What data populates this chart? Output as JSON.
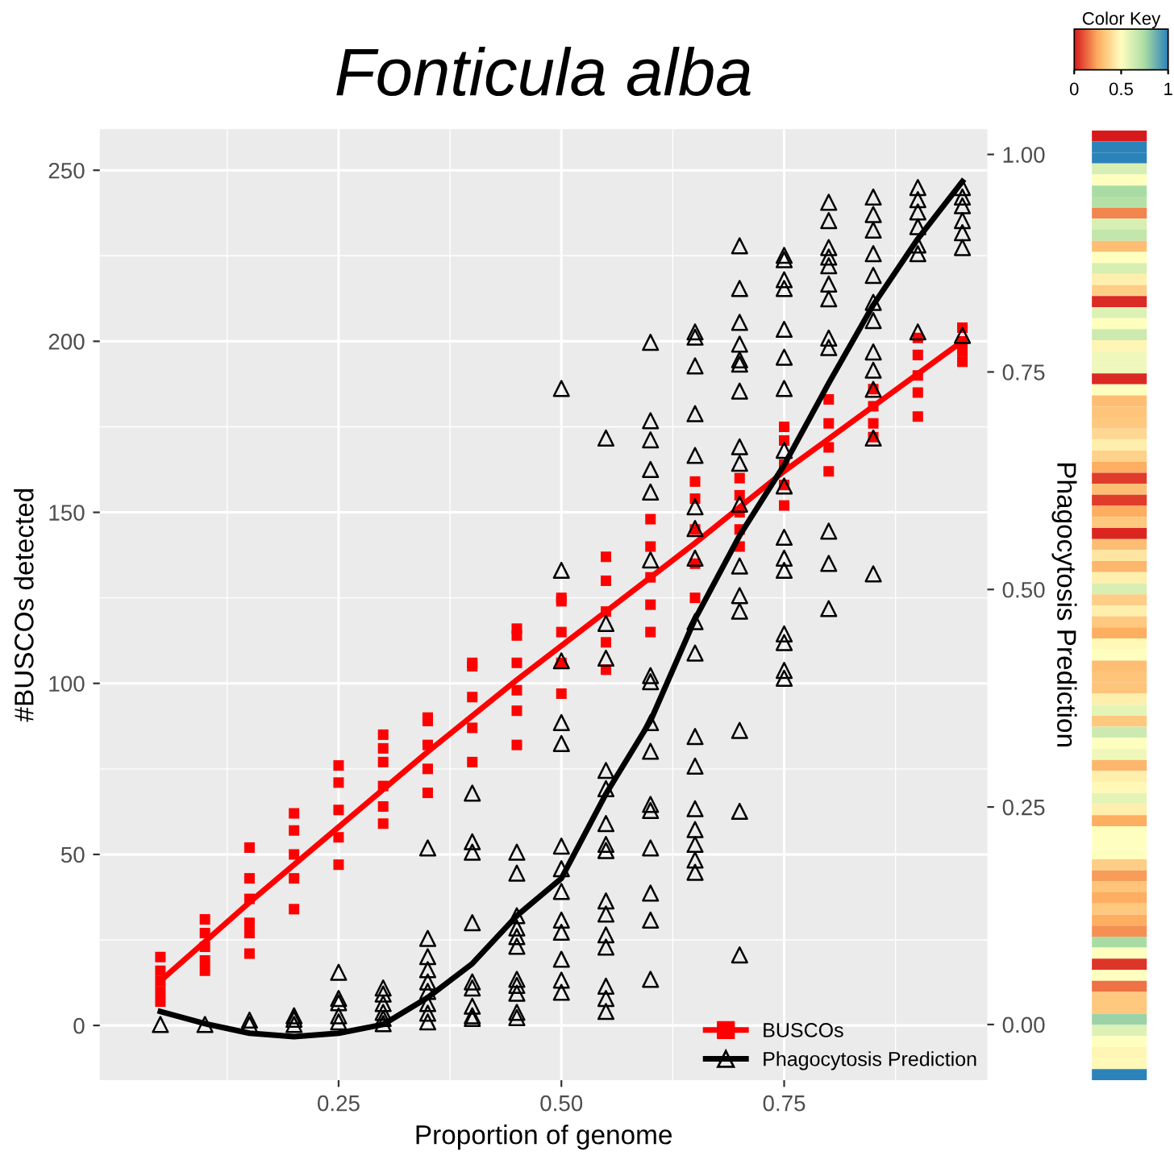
{
  "chart_data": [
    {
      "type": "scatter",
      "title": "Fonticula alba",
      "xlabel": "Proportion of genome",
      "ylabel": "#BUSCOs detected",
      "y2label": "Phagocytosis Prediction",
      "xlim": [
        -0.018,
        0.978
      ],
      "xticks": [
        {
          "value": 0.25,
          "label": "0.25"
        },
        {
          "value": 0.5,
          "label": "0.50"
        },
        {
          "value": 0.75,
          "label": "0.75"
        }
      ],
      "ylim": [
        -16,
        262
      ],
      "yticks": [
        0,
        50,
        100,
        150,
        200,
        250
      ],
      "y2lim": [
        -0.064,
        1.029
      ],
      "y2ticks": [
        {
          "value": 0,
          "label": "0.00"
        },
        {
          "value": 0.25,
          "label": "0.25"
        },
        {
          "value": 0.5,
          "label": "0.50"
        },
        {
          "value": 0.75,
          "label": "0.75"
        },
        {
          "value": 1,
          "label": "1.00"
        }
      ],
      "grid": true,
      "legend": "bottom right",
      "series": [
        {
          "type": "scatter",
          "name": "BUSCOs",
          "color": "#ff0000",
          "marker": "square",
          "x": [
            0.05,
            0.05,
            0.05,
            0.05,
            0.05,
            0.1,
            0.1,
            0.1,
            0.1,
            0.1,
            0.15,
            0.15,
            0.15,
            0.15,
            0.15,
            0.15,
            0.2,
            0.2,
            0.2,
            0.2,
            0.2,
            0.25,
            0.25,
            0.25,
            0.25,
            0.25,
            0.3,
            0.3,
            0.3,
            0.3,
            0.3,
            0.3,
            0.35,
            0.35,
            0.35,
            0.35,
            0.35,
            0.4,
            0.4,
            0.4,
            0.4,
            0.4,
            0.45,
            0.45,
            0.45,
            0.45,
            0.45,
            0.45,
            0.5,
            0.5,
            0.5,
            0.5,
            0.5,
            0.55,
            0.55,
            0.55,
            0.55,
            0.55,
            0.6,
            0.6,
            0.6,
            0.6,
            0.6,
            0.65,
            0.65,
            0.65,
            0.65,
            0.65,
            0.7,
            0.7,
            0.7,
            0.7,
            0.7,
            0.75,
            0.75,
            0.75,
            0.75,
            0.75,
            0.8,
            0.8,
            0.8,
            0.8,
            0.85,
            0.85,
            0.85,
            0.85,
            0.9,
            0.9,
            0.9,
            0.9,
            0.9,
            0.95,
            0.95,
            0.95,
            0.95
          ],
          "values": [
            20,
            16,
            13,
            10,
            7,
            31,
            27,
            23,
            19,
            16,
            52,
            43,
            37,
            30,
            27,
            21,
            62,
            57,
            50,
            43,
            34,
            76,
            71,
            63,
            55,
            47,
            85,
            81,
            77,
            70,
            64,
            59,
            90,
            89,
            82,
            75,
            68,
            106,
            105,
            96,
            87,
            77,
            116,
            114,
            106,
            98,
            92,
            82,
            125,
            124,
            115,
            106,
            97,
            137,
            130,
            121,
            112,
            104,
            148,
            140,
            131,
            123,
            115,
            159,
            154,
            145,
            135,
            125,
            160,
            155,
            150,
            145,
            140,
            175,
            171,
            164,
            158,
            152,
            183,
            176,
            169,
            162,
            186,
            181,
            176,
            172,
            201,
            196,
            190,
            185,
            178,
            204,
            200,
            197,
            194
          ]
        },
        {
          "type": "line",
          "color": "#ff0000",
          "x": [
            0.05,
            0.15,
            0.25,
            0.35,
            0.45,
            0.55,
            0.65,
            0.75,
            0.85,
            0.95
          ],
          "values": [
            13,
            36,
            58,
            80,
            101,
            121,
            141,
            162,
            181,
            200
          ]
        },
        {
          "type": "scatter",
          "name": "Phagocytosis Prediction",
          "color": "#000000",
          "marker": "triangle",
          "axis": "y2",
          "x": [
            0.05,
            0.1,
            0.15,
            0.15,
            0.2,
            0.2,
            0.2,
            0.25,
            0.25,
            0.25,
            0.25,
            0.25,
            0.3,
            0.3,
            0.3,
            0.3,
            0.3,
            0.3,
            0.35,
            0.35,
            0.35,
            0.35,
            0.35,
            0.35,
            0.35,
            0.35,
            0.35,
            0.4,
            0.4,
            0.4,
            0.4,
            0.4,
            0.4,
            0.4,
            0.4,
            0.4,
            0.45,
            0.45,
            0.45,
            0.45,
            0.45,
            0.45,
            0.45,
            0.45,
            0.45,
            0.45,
            0.45,
            0.5,
            0.5,
            0.5,
            0.5,
            0.5,
            0.5,
            0.5,
            0.5,
            0.5,
            0.5,
            0.5,
            0.5,
            0.5,
            0.55,
            0.55,
            0.55,
            0.55,
            0.55,
            0.55,
            0.55,
            0.55,
            0.55,
            0.55,
            0.55,
            0.55,
            0.55,
            0.55,
            0.55,
            0.6,
            0.6,
            0.6,
            0.6,
            0.6,
            0.6,
            0.6,
            0.6,
            0.6,
            0.6,
            0.6,
            0.6,
            0.6,
            0.6,
            0.6,
            0.6,
            0.65,
            0.65,
            0.65,
            0.65,
            0.65,
            0.65,
            0.65,
            0.65,
            0.65,
            0.65,
            0.65,
            0.65,
            0.65,
            0.65,
            0.65,
            0.65,
            0.65,
            0.7,
            0.7,
            0.7,
            0.7,
            0.7,
            0.7,
            0.7,
            0.7,
            0.7,
            0.7,
            0.7,
            0.7,
            0.7,
            0.7,
            0.7,
            0.7,
            0.75,
            0.75,
            0.75,
            0.75,
            0.75,
            0.75,
            0.75,
            0.75,
            0.75,
            0.75,
            0.75,
            0.75,
            0.75,
            0.75,
            0.75,
            0.75,
            0.8,
            0.8,
            0.8,
            0.8,
            0.8,
            0.8,
            0.8,
            0.8,
            0.8,
            0.8,
            0.8,
            0.8,
            0.85,
            0.85,
            0.85,
            0.85,
            0.85,
            0.85,
            0.85,
            0.85,
            0.85,
            0.85,
            0.85,
            0.85,
            0.9,
            0.9,
            0.9,
            0.9,
            0.9,
            0.9,
            0.9,
            0.95,
            0.95,
            0.95,
            0.95,
            0.95,
            0.95,
            0.95
          ],
          "values": [
            0.0,
            0.0,
            0.005,
            0.0,
            0.01,
            0.006,
            0.0,
            0.06,
            0.03,
            0.025,
            0.01,
            0.003,
            0.042,
            0.035,
            0.024,
            0.014,
            0.007,
            0.001,
            0.203,
            0.099,
            0.078,
            0.063,
            0.049,
            0.038,
            0.024,
            0.013,
            0.003,
            0.266,
            0.21,
            0.198,
            0.117,
            0.049,
            0.042,
            0.021,
            0.01,
            0.007,
            0.198,
            0.174,
            0.125,
            0.111,
            0.101,
            0.09,
            0.052,
            0.045,
            0.036,
            0.014,
            0.008,
            0.731,
            0.522,
            0.418,
            0.347,
            0.323,
            0.205,
            0.179,
            0.153,
            0.12,
            0.106,
            0.075,
            0.051,
            0.037,
            0.674,
            0.461,
            0.421,
            0.292,
            0.271,
            0.231,
            0.207,
            0.2,
            0.142,
            0.127,
            0.103,
            0.089,
            0.044,
            0.03,
            0.015,
            0.784,
            0.694,
            0.672,
            0.638,
            0.612,
            0.534,
            0.401,
            0.394,
            0.347,
            0.314,
            0.253,
            0.246,
            0.203,
            0.151,
            0.12,
            0.052,
            0.796,
            0.79,
            0.757,
            0.702,
            0.654,
            0.595,
            0.57,
            0.536,
            0.463,
            0.427,
            0.331,
            0.297,
            0.248,
            0.224,
            0.207,
            0.189,
            0.175,
            0.895,
            0.846,
            0.807,
            0.782,
            0.764,
            0.759,
            0.728,
            0.664,
            0.645,
            0.598,
            0.527,
            0.493,
            0.475,
            0.338,
            0.245,
            0.08,
            0.884,
            0.879,
            0.856,
            0.846,
            0.799,
            0.767,
            0.731,
            0.66,
            0.619,
            0.56,
            0.536,
            0.522,
            0.449,
            0.439,
            0.407,
            0.398,
            0.945,
            0.924,
            0.893,
            0.882,
            0.872,
            0.851,
            0.834,
            0.789,
            0.778,
            0.567,
            0.53,
            0.478,
            0.951,
            0.931,
            0.913,
            0.886,
            0.861,
            0.83,
            0.809,
            0.773,
            0.752,
            0.73,
            0.674,
            0.518,
            0.962,
            0.948,
            0.934,
            0.917,
            0.896,
            0.886,
            0.796,
            0.962,
            0.951,
            0.941,
            0.924,
            0.91,
            0.893,
            0.792
          ]
        },
        {
          "type": "line",
          "color": "#000000",
          "axis": "y2",
          "x": [
            0.05,
            0.1,
            0.15,
            0.2,
            0.25,
            0.3,
            0.35,
            0.4,
            0.45,
            0.5,
            0.55,
            0.6,
            0.65,
            0.7,
            0.75,
            0.8,
            0.85,
            0.9,
            0.95
          ],
          "values": [
            0.015,
            0.001,
            -0.01,
            -0.014,
            -0.01,
            0.0,
            0.031,
            0.07,
            0.125,
            0.168,
            0.265,
            0.349,
            0.466,
            0.562,
            0.643,
            0.737,
            0.827,
            0.903,
            0.969
          ]
        }
      ]
    },
    {
      "type": "heatmap",
      "clabel": "Color Key",
      "clim": [
        0,
        1
      ],
      "cticks": [
        0,
        0.5,
        1
      ],
      "tick_labels": false,
      "categories": [
        null
      ],
      "y_categories": [
        null,
        null,
        null,
        null,
        null,
        null,
        null,
        null,
        null,
        null,
        null,
        null,
        null,
        null,
        null,
        null,
        null,
        null,
        null,
        null,
        null,
        null,
        null,
        null,
        null,
        null,
        null,
        null,
        null,
        null,
        null,
        null,
        null,
        null,
        null,
        null,
        null,
        null,
        null,
        null,
        null,
        null,
        null,
        null,
        null,
        null,
        null,
        null,
        null,
        null,
        null,
        null,
        null,
        null,
        null,
        null,
        null,
        null,
        null,
        null,
        null,
        null,
        null,
        null,
        null,
        null,
        null,
        null,
        null,
        null,
        null,
        null,
        null,
        null,
        null,
        null,
        null,
        null,
        null,
        null,
        null,
        null,
        null,
        null,
        null,
        null
      ],
      "cells": [
        [
          0.0
        ],
        [
          1.0
        ],
        [
          1.0
        ],
        [
          0.62
        ],
        [
          0.5
        ],
        [
          0.75
        ],
        [
          0.72
        ],
        [
          0.18
        ],
        [
          0.62
        ],
        [
          0.68
        ],
        [
          0.3
        ],
        [
          0.5
        ],
        [
          0.62
        ],
        [
          0.45
        ],
        [
          0.35
        ],
        [
          0.03
        ],
        [
          0.6
        ],
        [
          0.5
        ],
        [
          0.65
        ],
        [
          0.47
        ],
        [
          0.55
        ],
        [
          0.55
        ],
        [
          0.03
        ],
        [
          0.5
        ],
        [
          0.3
        ],
        [
          0.32
        ],
        [
          0.33
        ],
        [
          0.38
        ],
        [
          0.45
        ],
        [
          0.36
        ],
        [
          0.25
        ],
        [
          0.06
        ],
        [
          0.3
        ],
        [
          0.06
        ],
        [
          0.25
        ],
        [
          0.33
        ],
        [
          0.02
        ],
        [
          0.3
        ],
        [
          0.42
        ],
        [
          0.28
        ],
        [
          0.45
        ],
        [
          0.62
        ],
        [
          0.35
        ],
        [
          0.45
        ],
        [
          0.33
        ],
        [
          0.25
        ],
        [
          0.48
        ],
        [
          0.5
        ],
        [
          0.3
        ],
        [
          0.32
        ],
        [
          0.32
        ],
        [
          0.45
        ],
        [
          0.58
        ],
        [
          0.33
        ],
        [
          0.65
        ],
        [
          0.5
        ],
        [
          0.55
        ],
        [
          0.28
        ],
        [
          0.45
        ],
        [
          0.48
        ],
        [
          0.58
        ],
        [
          0.45
        ],
        [
          0.25
        ],
        [
          0.5
        ],
        [
          0.5
        ],
        [
          0.5
        ],
        [
          0.35
        ],
        [
          0.22
        ],
        [
          0.32
        ],
        [
          0.25
        ],
        [
          0.33
        ],
        [
          0.25
        ],
        [
          0.2
        ],
        [
          0.75
        ],
        [
          0.5
        ],
        [
          0.05
        ],
        [
          0.5
        ],
        [
          0.15
        ],
        [
          0.33
        ],
        [
          0.33
        ],
        [
          0.78
        ],
        [
          0.6
        ],
        [
          0.5
        ],
        [
          0.47
        ],
        [
          0.48
        ],
        [
          1.0
        ]
      ]
    }
  ]
}
